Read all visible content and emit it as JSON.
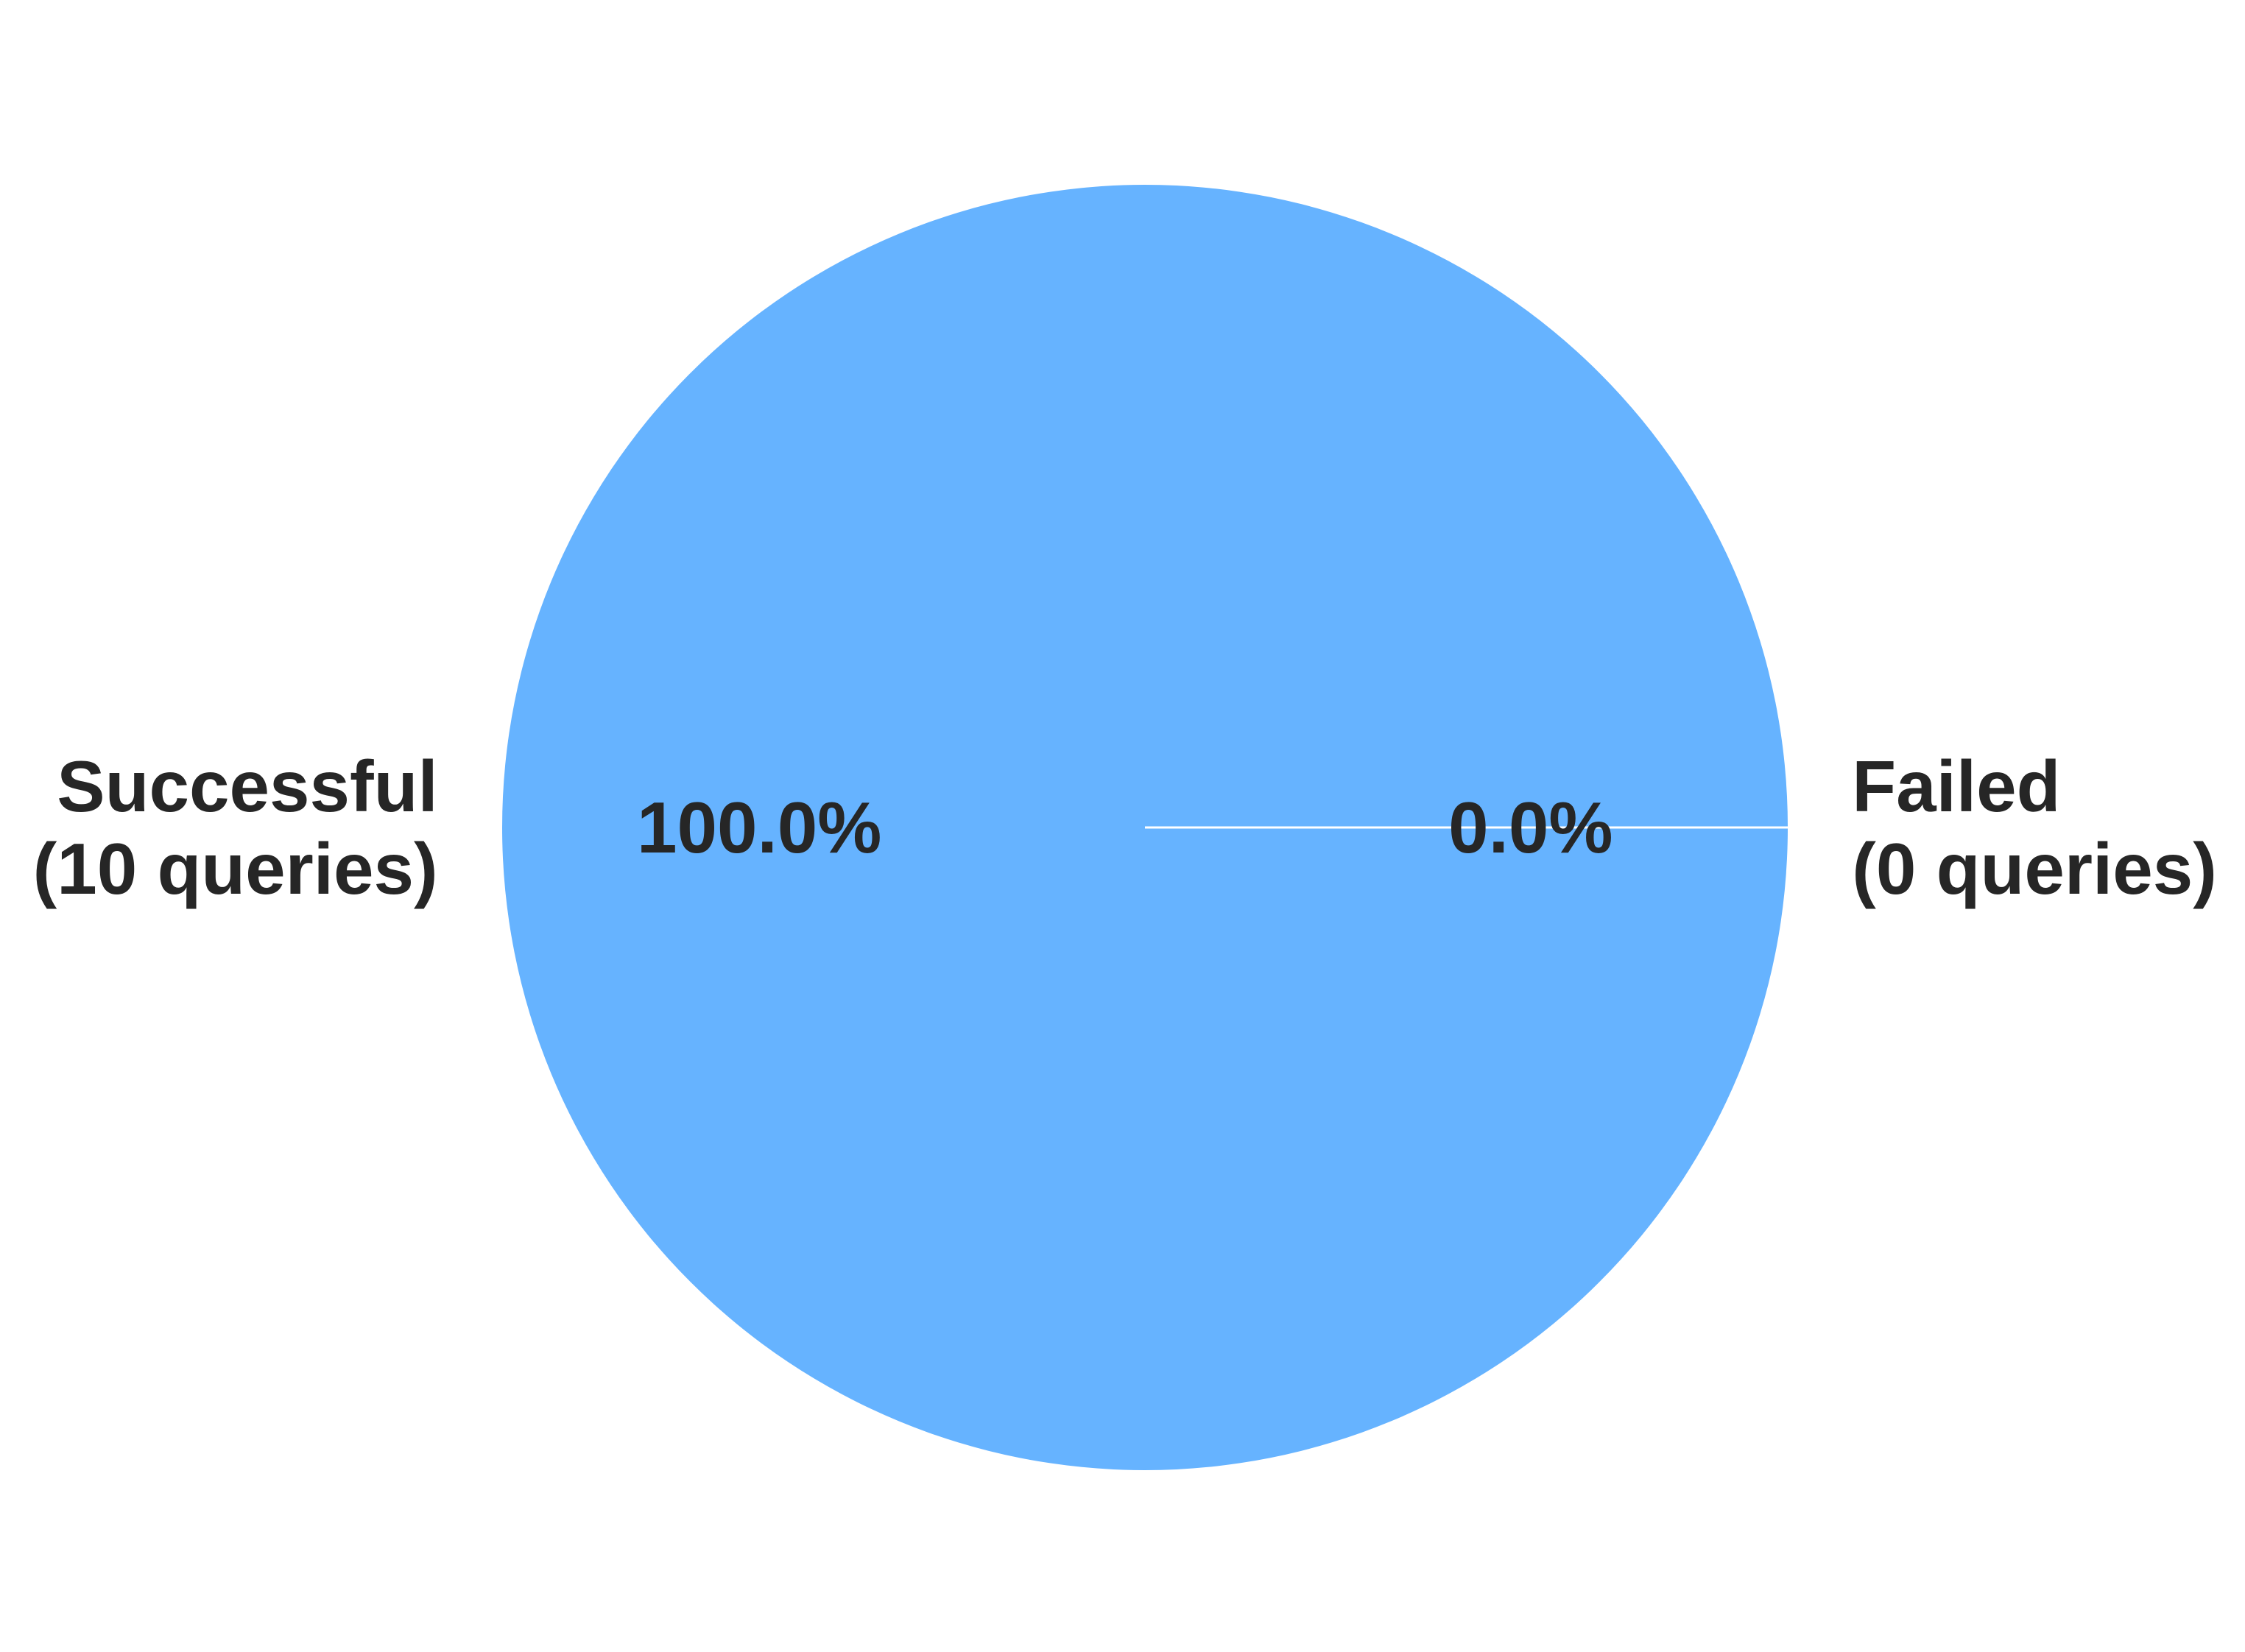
{
  "chart_data": {
    "type": "pie",
    "title": "",
    "slices": [
      {
        "label_line1": "Successful",
        "label_line2": "(10 queries)",
        "value": 10,
        "percent_label": "100.0%",
        "color": "#66b3ff"
      },
      {
        "label_line1": "Failed",
        "label_line2": "(0 queries)",
        "value": 0,
        "percent_label": "0.0%",
        "color": "#ff9999"
      }
    ],
    "start_angle_deg": 0,
    "text_color": "#262626",
    "edge_color": "#ffffff"
  }
}
